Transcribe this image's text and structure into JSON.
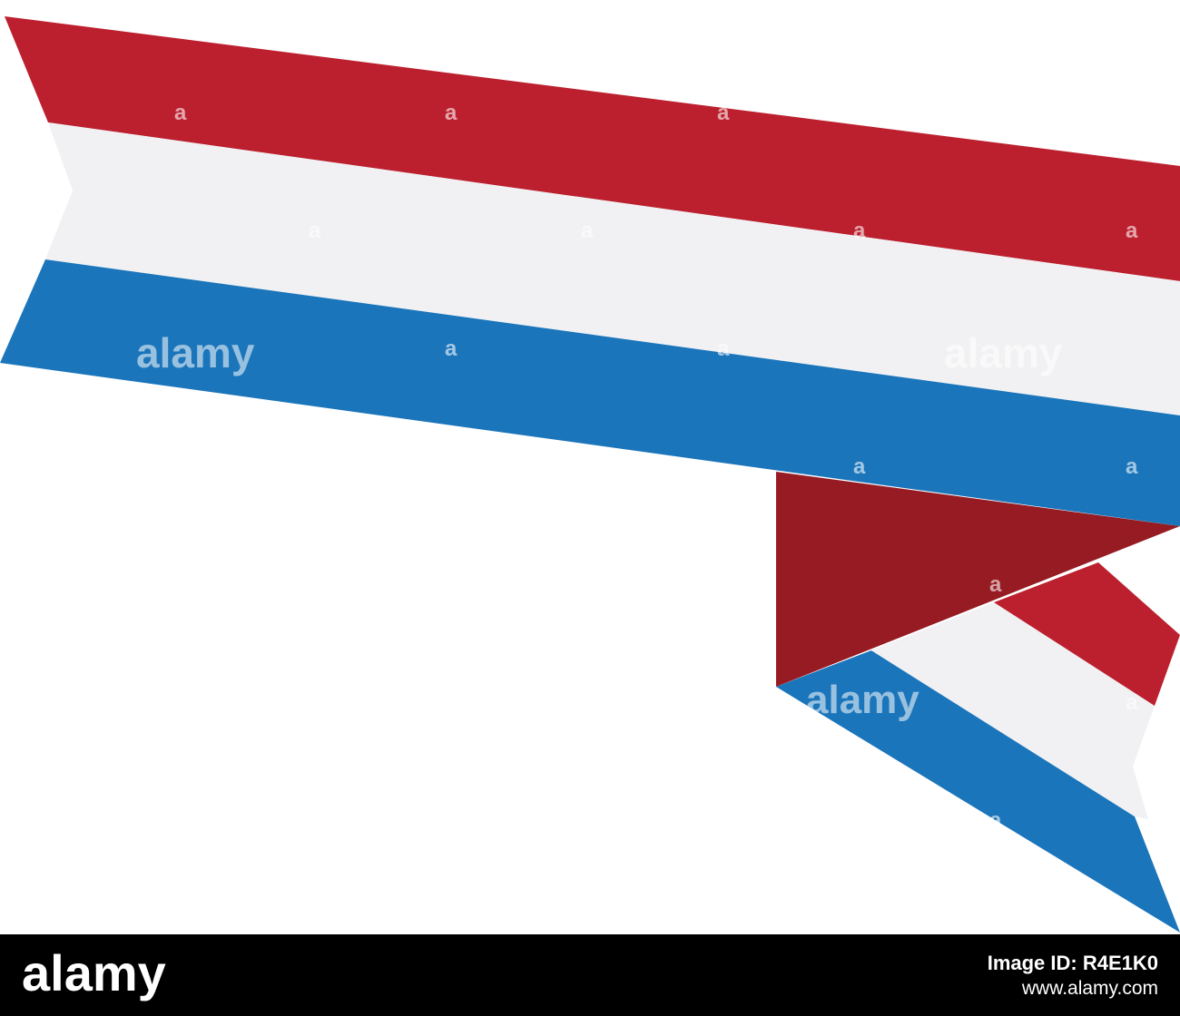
{
  "watermark": {
    "brand": "alamy",
    "letter": "a"
  },
  "colors": {
    "red": "#bc202e",
    "red_dark": "#961b22",
    "white": "#f1f1f3",
    "blue": "#1b75bb",
    "background": "#ffffff",
    "footer_bg": "#000000"
  },
  "footer": {
    "logo_text": "alamy",
    "image_id": "Image ID: R4E1K0",
    "url": "www.alamy.com"
  }
}
